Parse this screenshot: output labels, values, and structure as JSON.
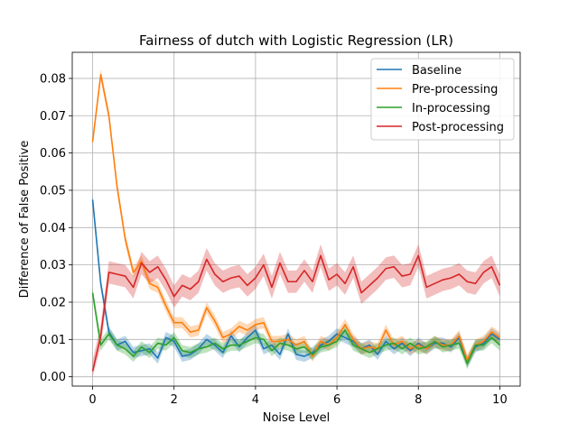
{
  "chart_data": {
    "type": "line",
    "title": "Fairness of dutch with Logistic Regression (LR)",
    "xlabel": "Noise Level",
    "ylabel": "Difference of False Positive",
    "xlim": [
      -0.5,
      10.5
    ],
    "ylim": [
      -0.0025,
      0.087
    ],
    "xticks": [
      0,
      2,
      4,
      6,
      8,
      10
    ],
    "yticks": [
      0.0,
      0.01,
      0.02,
      0.03,
      0.04,
      0.05,
      0.06,
      0.07,
      0.08
    ],
    "ytick_labels": [
      "0.00",
      "0.01",
      "0.02",
      "0.03",
      "0.04",
      "0.05",
      "0.06",
      "0.07",
      "0.08"
    ],
    "grid": true,
    "legend_position": "top-right",
    "x": [
      0,
      0.2,
      0.4,
      0.6,
      0.8,
      1.0,
      1.2,
      1.4,
      1.6,
      1.8,
      2.0,
      2.2,
      2.4,
      2.6,
      2.8,
      3.0,
      3.2,
      3.4,
      3.6,
      3.8,
      4.0,
      4.2,
      4.4,
      4.6,
      4.8,
      5.0,
      5.2,
      5.4,
      5.6,
      5.8,
      6.0,
      6.2,
      6.4,
      6.6,
      6.8,
      7.0,
      7.2,
      7.4,
      7.6,
      7.8,
      8.0,
      8.2,
      8.4,
      8.6,
      8.8,
      9.0,
      9.2,
      9.4,
      9.6,
      9.8,
      10.0
    ],
    "series": [
      {
        "name": "Baseline",
        "color": "#1f77b4",
        "values": [
          0.0475,
          0.025,
          0.012,
          0.0085,
          0.0095,
          0.0065,
          0.007,
          0.0075,
          0.005,
          0.0105,
          0.0095,
          0.0055,
          0.006,
          0.0075,
          0.01,
          0.0085,
          0.0065,
          0.011,
          0.008,
          0.0105,
          0.0125,
          0.0075,
          0.0085,
          0.006,
          0.0115,
          0.006,
          0.0055,
          0.0065,
          0.0085,
          0.0095,
          0.0115,
          0.0105,
          0.0095,
          0.0075,
          0.0085,
          0.006,
          0.0095,
          0.0075,
          0.009,
          0.007,
          0.009,
          0.0075,
          0.009,
          0.009,
          0.008,
          0.0105,
          0.004,
          0.008,
          0.009,
          0.0115,
          0.01
        ],
        "band": 0.0015
      },
      {
        "name": "Pre-processing",
        "color": "#ff7f0e",
        "values": [
          0.063,
          0.081,
          0.07,
          0.051,
          0.037,
          0.028,
          0.031,
          0.025,
          0.024,
          0.019,
          0.0145,
          0.0145,
          0.012,
          0.0125,
          0.0185,
          0.015,
          0.0105,
          0.0115,
          0.0135,
          0.0125,
          0.014,
          0.0145,
          0.0095,
          0.0095,
          0.01,
          0.0085,
          0.0095,
          0.0055,
          0.0095,
          0.0085,
          0.0105,
          0.014,
          0.01,
          0.0075,
          0.008,
          0.0075,
          0.0125,
          0.0085,
          0.0095,
          0.0075,
          0.0085,
          0.0075,
          0.0095,
          0.0085,
          0.0085,
          0.011,
          0.0045,
          0.0085,
          0.0095,
          0.012,
          0.0105
        ],
        "band": 0.0015
      },
      {
        "name": "In-processing",
        "color": "#2ca02c",
        "values": [
          0.0225,
          0.0085,
          0.0115,
          0.0085,
          0.0075,
          0.0055,
          0.008,
          0.0065,
          0.009,
          0.0085,
          0.0105,
          0.007,
          0.0065,
          0.0075,
          0.008,
          0.009,
          0.0075,
          0.0085,
          0.0085,
          0.0095,
          0.0105,
          0.01,
          0.007,
          0.009,
          0.0085,
          0.0075,
          0.008,
          0.006,
          0.008,
          0.0085,
          0.0095,
          0.0125,
          0.0085,
          0.0075,
          0.0065,
          0.0075,
          0.0085,
          0.009,
          0.0075,
          0.009,
          0.0075,
          0.008,
          0.0095,
          0.008,
          0.0085,
          0.009,
          0.0035,
          0.0085,
          0.0085,
          0.0105,
          0.0085
        ],
        "band": 0.0015
      },
      {
        "name": "Post-processing",
        "color": "#d62728",
        "values": [
          0.0015,
          0.011,
          0.028,
          0.0275,
          0.027,
          0.024,
          0.0305,
          0.028,
          0.0295,
          0.026,
          0.0215,
          0.0245,
          0.0235,
          0.0255,
          0.0315,
          0.0275,
          0.0255,
          0.0265,
          0.027,
          0.0245,
          0.0265,
          0.03,
          0.024,
          0.0305,
          0.0255,
          0.0255,
          0.0285,
          0.0255,
          0.0325,
          0.026,
          0.0275,
          0.025,
          0.0295,
          0.0225,
          0.0245,
          0.0265,
          0.029,
          0.0295,
          0.027,
          0.0275,
          0.0325,
          0.024,
          0.025,
          0.026,
          0.0265,
          0.0275,
          0.0255,
          0.025,
          0.028,
          0.0295,
          0.0245
        ],
        "band": 0.003
      }
    ]
  }
}
